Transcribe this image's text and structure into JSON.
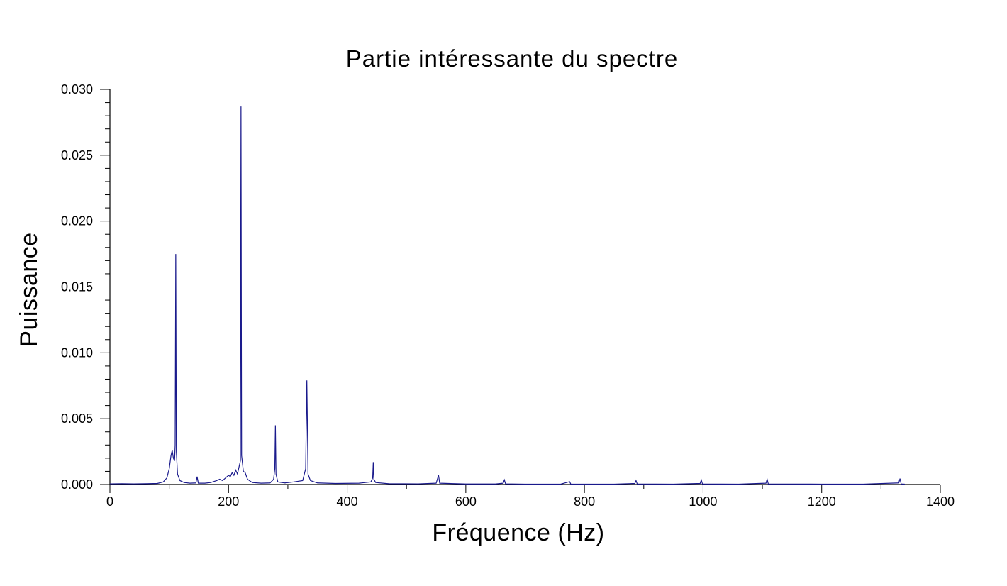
{
  "chart_data": {
    "type": "line",
    "title": "Partie intéressante du spectre",
    "xlabel": "Fréquence (Hz)",
    "ylabel": "Puissance",
    "xlim": [
      0,
      1400
    ],
    "ylim": [
      0,
      0.03
    ],
    "x_ticks": [
      "0",
      "200",
      "400",
      "600",
      "800",
      "1000",
      "1200",
      "1400"
    ],
    "y_ticks": [
      "0.000",
      "0.005",
      "0.010",
      "0.015",
      "0.020",
      "0.025",
      "0.030"
    ],
    "grid": false,
    "legend": "none",
    "series": [
      {
        "color": "#1a1a8c",
        "points": [
          [
            0,
            5e-05
          ],
          [
            20,
            6e-05
          ],
          [
            40,
            5e-05
          ],
          [
            60,
            6e-05
          ],
          [
            80,
            8e-05
          ],
          [
            90,
            0.0002
          ],
          [
            96,
            0.0005
          ],
          [
            100,
            0.0012
          ],
          [
            103,
            0.0022
          ],
          [
            105,
            0.0026
          ],
          [
            107,
            0.002
          ],
          [
            109,
            0.0018
          ],
          [
            110,
            0.003
          ],
          [
            111,
            0.0175
          ],
          [
            112,
            0.0025
          ],
          [
            114,
            0.0008
          ],
          [
            118,
            0.0003
          ],
          [
            125,
            0.00015
          ],
          [
            135,
            0.0001
          ],
          [
            145,
            0.00012
          ],
          [
            147,
            0.0006
          ],
          [
            149,
            0.0001
          ],
          [
            160,
            0.0001
          ],
          [
            170,
            0.00015
          ],
          [
            180,
            0.0003
          ],
          [
            185,
            0.0004
          ],
          [
            190,
            0.0003
          ],
          [
            195,
            0.0005
          ],
          [
            200,
            0.0007
          ],
          [
            203,
            0.0006
          ],
          [
            206,
            0.0009
          ],
          [
            209,
            0.0007
          ],
          [
            212,
            0.0011
          ],
          [
            215,
            0.0008
          ],
          [
            218,
            0.0014
          ],
          [
            220,
            0.0018
          ],
          [
            221,
            0.0287
          ],
          [
            222,
            0.0022
          ],
          [
            225,
            0.001
          ],
          [
            228,
            0.0009
          ],
          [
            232,
            0.0004
          ],
          [
            240,
            0.00015
          ],
          [
            255,
            0.0001
          ],
          [
            270,
            0.00012
          ],
          [
            276,
            0.0004
          ],
          [
            278,
            0.0012
          ],
          [
            279,
            0.0045
          ],
          [
            280,
            0.0008
          ],
          [
            283,
            0.0002
          ],
          [
            295,
            0.00012
          ],
          [
            310,
            0.0002
          ],
          [
            325,
            0.0003
          ],
          [
            330,
            0.0012
          ],
          [
            332,
            0.0079
          ],
          [
            334,
            0.0008
          ],
          [
            338,
            0.0003
          ],
          [
            350,
            0.00012
          ],
          [
            380,
            8e-05
          ],
          [
            420,
            0.0001
          ],
          [
            440,
            0.0002
          ],
          [
            443,
            0.0005
          ],
          [
            444,
            0.0017
          ],
          [
            445,
            0.0004
          ],
          [
            448,
            0.00015
          ],
          [
            470,
            6e-05
          ],
          [
            520,
            5e-05
          ],
          [
            550,
            0.0001
          ],
          [
            554,
            0.0007
          ],
          [
            556,
            0.0001
          ],
          [
            600,
            4e-05
          ],
          [
            650,
            4e-05
          ],
          [
            663,
            0.0001
          ],
          [
            665,
            0.00035
          ],
          [
            667,
            5e-05
          ],
          [
            700,
            3e-05
          ],
          [
            760,
            3e-05
          ],
          [
            775,
            0.00022
          ],
          [
            777,
            3e-05
          ],
          [
            850,
            3e-05
          ],
          [
            885,
            8e-05
          ],
          [
            887,
            0.0003
          ],
          [
            889,
            4e-05
          ],
          [
            950,
            3e-05
          ],
          [
            995,
            8e-05
          ],
          [
            997,
            0.00035
          ],
          [
            999,
            4e-05
          ],
          [
            1060,
            3e-05
          ],
          [
            1106,
            0.0001
          ],
          [
            1108,
            0.0004
          ],
          [
            1110,
            4e-05
          ],
          [
            1200,
            3e-05
          ],
          [
            1270,
            3e-05
          ],
          [
            1330,
            0.00012
          ],
          [
            1332,
            0.00045
          ],
          [
            1334,
            4e-05
          ],
          [
            1340,
            3e-05
          ]
        ]
      }
    ]
  }
}
